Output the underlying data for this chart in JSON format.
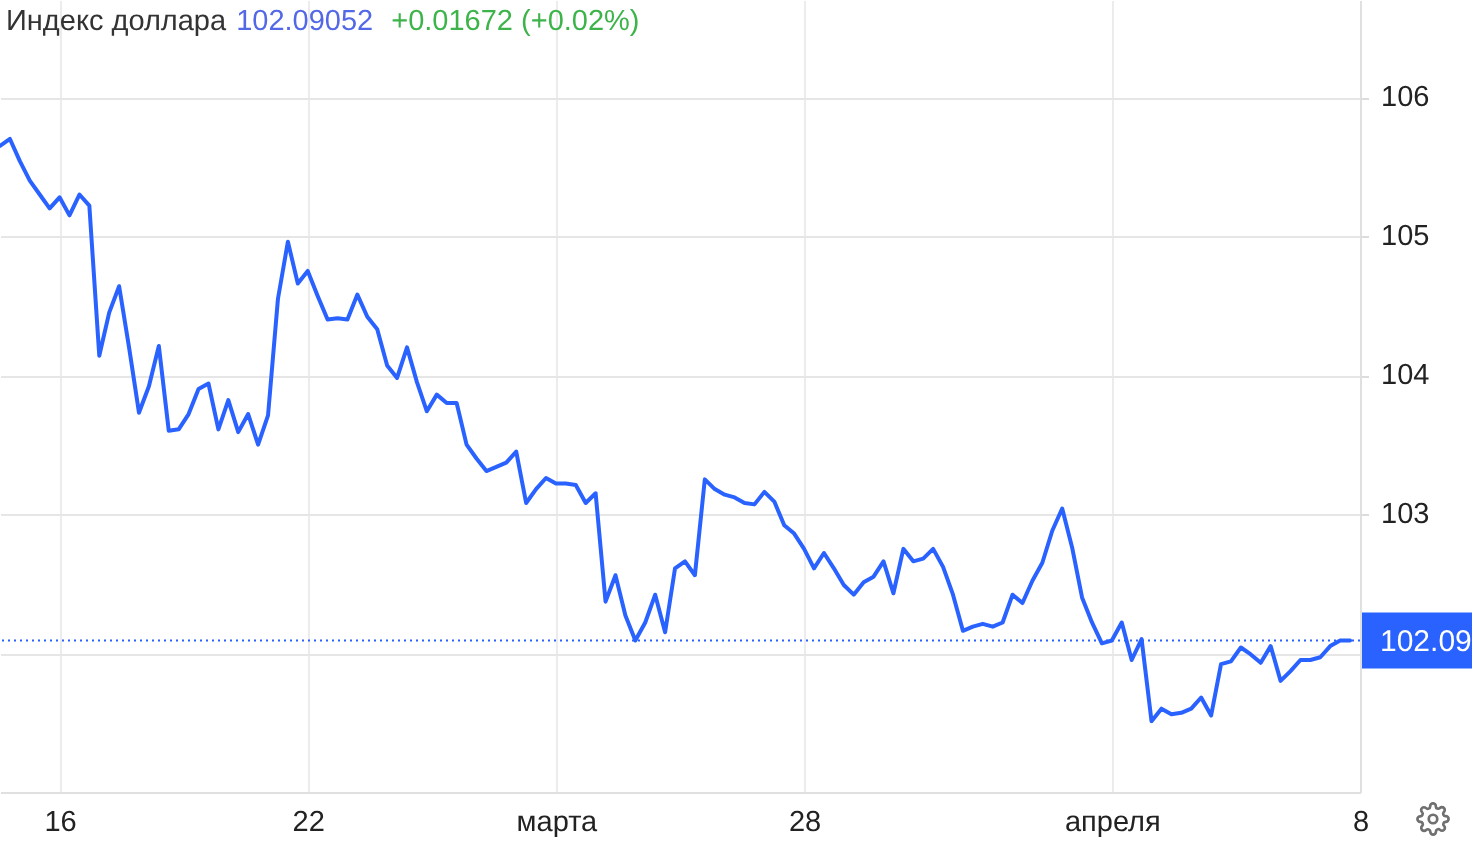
{
  "chart_data": {
    "type": "line",
    "title": "Индекс доллара",
    "annotations": [
      "102.09052",
      "+0.01672 (+0.02%)"
    ],
    "categories": [
      null,
      null,
      null,
      null,
      null,
      null,
      "16",
      null,
      null,
      null,
      null,
      null,
      null,
      null,
      null,
      null,
      null,
      null,
      null,
      null,
      null,
      null,
      null,
      null,
      null,
      null,
      null,
      null,
      null,
      null,
      null,
      "22",
      null,
      null,
      null,
      null,
      null,
      null,
      null,
      null,
      null,
      null,
      null,
      null,
      null,
      null,
      null,
      null,
      null,
      null,
      null,
      null,
      null,
      null,
      null,
      null,
      "марта",
      null,
      null,
      null,
      null,
      null,
      null,
      null,
      null,
      null,
      null,
      null,
      null,
      null,
      null,
      null,
      null,
      null,
      null,
      null,
      null,
      null,
      null,
      null,
      null,
      "28",
      null,
      null,
      null,
      null,
      null,
      null,
      null,
      null,
      null,
      null,
      null,
      null,
      null,
      null,
      null,
      null,
      null,
      null,
      null,
      null,
      null,
      null,
      null,
      null,
      null,
      null,
      null,
      null,
      null,
      null,
      "апреля",
      null,
      null,
      null,
      null,
      null,
      null,
      null,
      null,
      null,
      null,
      null,
      null,
      null,
      null,
      null,
      null,
      null,
      null,
      null,
      null,
      null,
      null,
      null,
      null,
      "8"
    ],
    "values": [
      105.65,
      105.7,
      105.54,
      105.4,
      105.3,
      105.2,
      105.28,
      105.15,
      105.3,
      105.22,
      104.14,
      104.45,
      104.64,
      104.2,
      103.73,
      103.92,
      104.21,
      103.6,
      103.61,
      103.72,
      103.9,
      103.94,
      103.61,
      103.82,
      103.59,
      103.72,
      103.5,
      103.71,
      104.55,
      104.96,
      104.66,
      104.75,
      104.57,
      104.4,
      104.41,
      104.4,
      104.58,
      104.42,
      104.33,
      104.07,
      103.98,
      104.2,
      103.95,
      103.74,
      103.86,
      103.8,
      103.8,
      103.5,
      103.4,
      103.31,
      103.34,
      103.37,
      103.45,
      103.08,
      103.18,
      103.26,
      103.22,
      103.22,
      103.21,
      103.08,
      103.15,
      102.37,
      102.56,
      102.27,
      102.09,
      102.22,
      102.42,
      102.15,
      102.61,
      102.66,
      102.56,
      103.25,
      103.18,
      103.14,
      103.12,
      103.08,
      103.07,
      103.16,
      103.09,
      102.92,
      102.86,
      102.75,
      102.61,
      102.72,
      102.61,
      102.49,
      102.42,
      102.51,
      102.55,
      102.66,
      102.43,
      102.75,
      102.66,
      102.68,
      102.75,
      102.62,
      102.42,
      102.16,
      102.19,
      102.21,
      102.19,
      102.22,
      102.42,
      102.36,
      102.52,
      102.65,
      102.88,
      103.04,
      102.76,
      102.4,
      102.22,
      102.07,
      102.09,
      102.22,
      101.95,
      102.1,
      101.51,
      101.6,
      101.56,
      101.57,
      101.6,
      101.68,
      101.55,
      101.92,
      101.94,
      102.04,
      101.99,
      101.93,
      102.05,
      101.8,
      101.87,
      101.95,
      101.95,
      101.97,
      102.05,
      102.09,
      102.09,
      null
    ],
    "color": "#2962ff",
    "ylim": [
      101.0,
      106.7
    ],
    "yticks": [
      {
        "value": 102,
        "label": null
      },
      103,
      104,
      105,
      106
    ],
    "grid": true,
    "ref_lines": [
      {
        "axis": "y",
        "value": 102.09,
        "label": "102.09",
        "color": "#2962ff",
        "line_style": "dotted"
      }
    ]
  }
}
